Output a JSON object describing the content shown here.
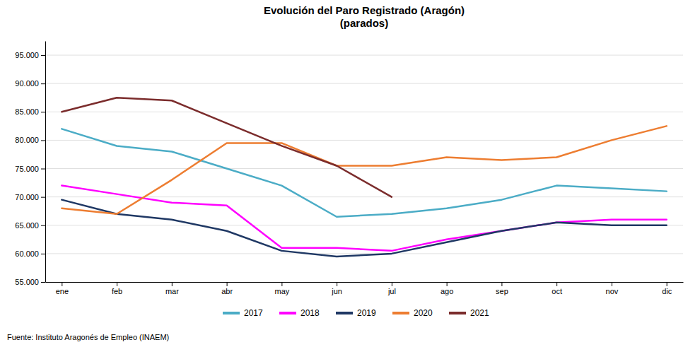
{
  "chart_data": {
    "type": "line",
    "title": "Evolución del Paro Registrado (Aragón)\n(parados)",
    "categories": [
      "ene",
      "feb",
      "mar",
      "abr",
      "may",
      "jun",
      "jul",
      "ago",
      "sep",
      "oct",
      "nov",
      "dic"
    ],
    "series": [
      {
        "name": "2017",
        "color": "#4BACC6",
        "values": [
          82000,
          79000,
          78000,
          75000,
          72000,
          66500,
          67000,
          68000,
          69500,
          72000,
          71500,
          71000
        ]
      },
      {
        "name": "2018",
        "color": "#FF00FF",
        "values": [
          72000,
          70500,
          69000,
          68500,
          61000,
          61000,
          60500,
          62500,
          64000,
          65500,
          66000,
          66000
        ]
      },
      {
        "name": "2019",
        "color": "#1F3864",
        "values": [
          69500,
          67000,
          66000,
          64000,
          60500,
          59500,
          60000,
          62000,
          64000,
          65500,
          65000,
          65000
        ]
      },
      {
        "name": "2020",
        "color": "#ED7D31",
        "values": [
          68000,
          67000,
          73000,
          79500,
          79500,
          75500,
          75500,
          77000,
          76500,
          77000,
          80000,
          82500
        ]
      },
      {
        "name": "2021",
        "color": "#7B2C2C",
        "values": [
          85000,
          87500,
          87000,
          83000,
          79000,
          75500,
          70000,
          null,
          null,
          null,
          null,
          null
        ]
      }
    ],
    "ylim": [
      55000,
      97500
    ],
    "yticks": [
      {
        "value": 55000,
        "label": "55.000"
      },
      {
        "value": 60000,
        "label": "60.000"
      },
      {
        "value": 65000,
        "label": "65.000"
      },
      {
        "value": 70000,
        "label": "70.000"
      },
      {
        "value": 75000,
        "label": "75.000"
      },
      {
        "value": 80000,
        "label": "80.000"
      },
      {
        "value": 85000,
        "label": "85.000"
      },
      {
        "value": 90000,
        "label": "90.000"
      },
      {
        "value": 95000,
        "label": "95.000"
      }
    ],
    "grid": true,
    "legend": "bottom",
    "annotations": [
      "Fuente: Instituto Aragonés de Empleo (INAEM)"
    ]
  }
}
